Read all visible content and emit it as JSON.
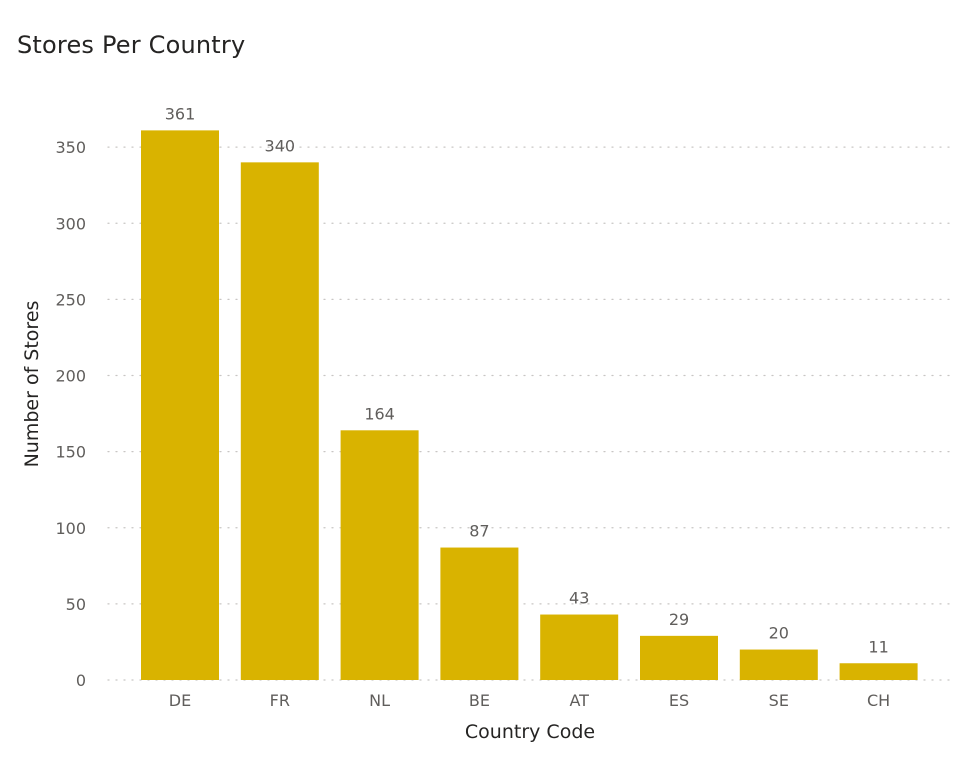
{
  "chart_data": {
    "type": "bar",
    "title": "Stores Per Country",
    "xlabel": "Country Code",
    "ylabel": "Number of Stores",
    "categories": [
      "DE",
      "FR",
      "NL",
      "BE",
      "AT",
      "ES",
      "SE",
      "CH"
    ],
    "values": [
      361,
      340,
      164,
      87,
      43,
      29,
      20,
      11
    ],
    "ylim": [
      0,
      361
    ],
    "yticks": [
      0,
      50,
      100,
      150,
      200,
      250,
      300,
      350
    ],
    "grid": true,
    "data_labels": true,
    "bar_color": "#D9B300"
  }
}
